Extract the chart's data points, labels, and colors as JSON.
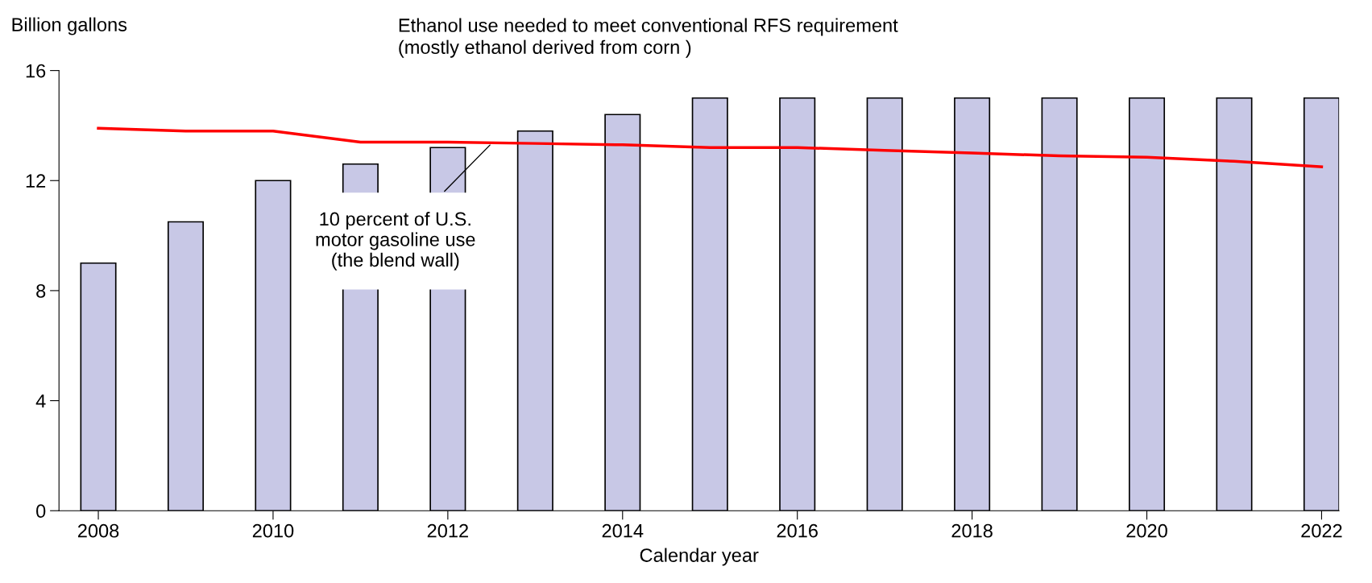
{
  "chart_data": {
    "type": "bar",
    "ylabel": "Billion gallons",
    "xlabel": "Calendar year",
    "x": [
      2008,
      2009,
      2010,
      2011,
      2012,
      2013,
      2014,
      2015,
      2016,
      2017,
      2018,
      2019,
      2020,
      2021,
      2022
    ],
    "series": [
      {
        "color": "#c8c8e6",
        "values": [
          9.0,
          10.5,
          12.0,
          12.6,
          13.2,
          13.8,
          14.4,
          15,
          15,
          15,
          15,
          15,
          15,
          15,
          15
        ]
      },
      {
        "type": "line",
        "color": "#ff0000",
        "values": [
          13.9,
          13.8,
          13.8,
          13.4,
          13.4,
          13.35,
          13.3,
          13.2,
          13.2,
          13.1,
          13.0,
          12.9,
          12.85,
          12.7,
          12.5
        ]
      }
    ],
    "annotations": [
      "Ethanol use needed to meet conventional RFS requirement\n(mostly ethanol derived from corn )",
      {
        "text": "10 percent of U.S.\nmotor gasoline use\n(the blend wall)",
        "x": 2012.5,
        "y": 13.35
      }
    ],
    "xlim": [
      2007.55,
      2022.2
    ],
    "ylim": [
      0,
      16
    ],
    "xticks": [
      2008,
      2010,
      2012,
      2014,
      2016,
      2018,
      2020,
      2022
    ],
    "yticks": [
      0,
      4,
      8,
      12,
      16
    ],
    "grid": false,
    "legend": false
  }
}
